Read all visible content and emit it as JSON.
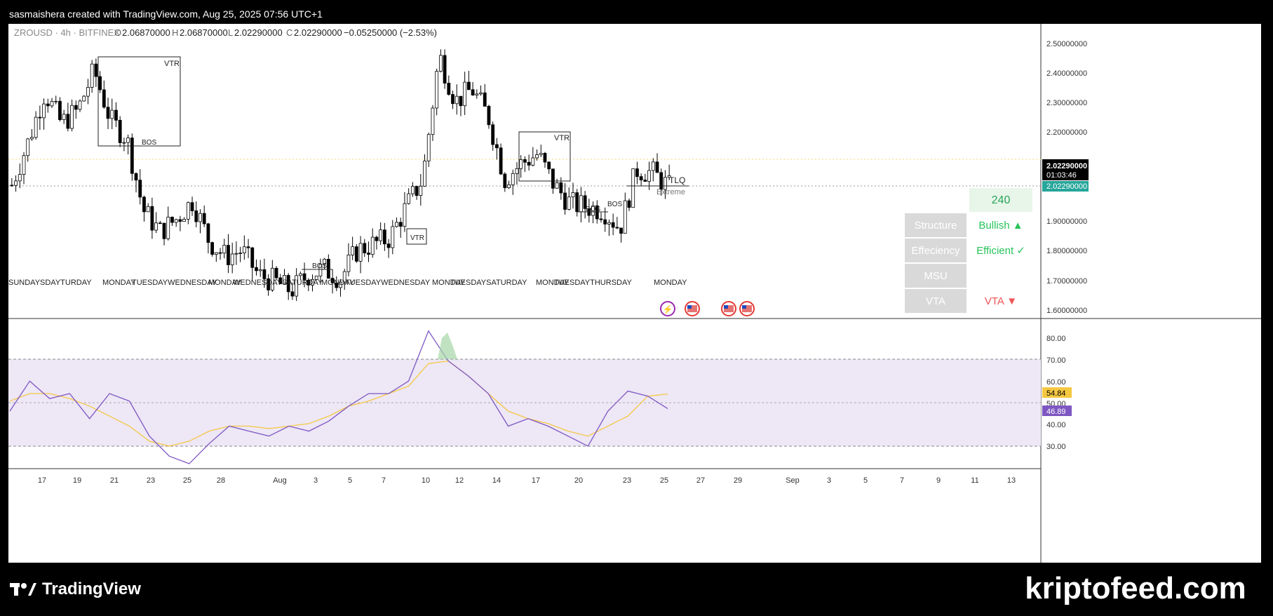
{
  "header": {
    "caption": "sasmaishera created with TradingView.com, Aug 25, 2025 07:56 UTC+1"
  },
  "symbol_bar": {
    "symbol": "ZROUSD · 4h · BITFINEX",
    "o_label": "O",
    "o": "2.06870000",
    "h_label": "H",
    "h": "2.06870000",
    "l_label": "L",
    "l": "2.02290000",
    "c_label": "C",
    "c": "2.02290000",
    "change": "−0.05250000 (−2.53%)"
  },
  "price_axis": {
    "labels": [
      "2.50000000",
      "2.40000000",
      "2.30000000",
      "2.20000000",
      "1.90000000",
      "1.80000000",
      "1.70000000",
      "1.60000000"
    ],
    "last_price": "2.02290000",
    "countdown": "01:03:46",
    "close_tag": "2.02290000"
  },
  "rsi_axis": {
    "labels": [
      "80.00",
      "70.00",
      "60.00",
      "40.00",
      "30.00"
    ],
    "partial_label": "50.00",
    "ma_value": "54.84",
    "rsi_value": "46.89"
  },
  "time_axis": {
    "labels": [
      "17",
      "19",
      "21",
      "23",
      "25",
      "28",
      "Aug",
      "3",
      "5",
      "7",
      "10",
      "12",
      "14",
      "17",
      "20",
      "23",
      "25",
      "27",
      "29",
      "Sep",
      "3",
      "5",
      "7",
      "9",
      "11",
      "13"
    ]
  },
  "annotations": {
    "vtr": "VTR",
    "bos": "BOS",
    "tlq": "TLQ",
    "extreme": "Extreme",
    "day_labels": [
      "SUNDAYSDAYTURDAY",
      "MONDAY",
      "TUESDAYWEDNESDAY",
      "MONDAY",
      "WEDNESDAYSATURDAY",
      "MONDAY",
      "TUESDAYWEDNESDAY",
      "MONDAY",
      "TUESDAYSATURDAY",
      "MONDAY",
      "TUESDAYTHURSDAY",
      "MONDAY",
      "TUESDAYWEDNESDAY",
      "MONDAY"
    ]
  },
  "status_table": {
    "timeframe": "240",
    "rows": [
      {
        "label": "Structure",
        "value": "Bullish ▲",
        "color": "#26c35a"
      },
      {
        "label": "Effeciency",
        "value": "Efficient ✓",
        "color": "#26c35a"
      },
      {
        "label": "MSU",
        "value": "",
        "color": "#26c35a"
      },
      {
        "label": "VTA",
        "value": "VTA ▼",
        "color": "#f05454"
      }
    ]
  },
  "footer": {
    "brand": "TradingView",
    "watermark": "kriptofeed.com"
  },
  "colors": {
    "up": "#ffffff",
    "down": "#000000",
    "rsi": "#7e57c2",
    "rsi_ma": "#f5c842",
    "rsi_band": "#ede7f6"
  },
  "chart_data": {
    "type": "candlestick",
    "timeframe": "4h",
    "symbol": "ZROUSD",
    "price_range": [
      1.6,
      2.55
    ],
    "price_path": [
      [
        "2025-07-16",
        2.03
      ],
      [
        "2025-07-17",
        2.17
      ],
      [
        "2025-07-18",
        2.33
      ],
      [
        "2025-07-19",
        2.23
      ],
      [
        "2025-07-20",
        2.27
      ],
      [
        "2025-07-21",
        2.4
      ],
      [
        "2025-07-22",
        2.24
      ],
      [
        "2025-07-23",
        2.18
      ],
      [
        "2025-07-24",
        1.95
      ],
      [
        "2025-07-25",
        1.88
      ],
      [
        "2025-07-26",
        1.92
      ],
      [
        "2025-07-27",
        1.98
      ],
      [
        "2025-07-28",
        1.85
      ],
      [
        "2025-07-29",
        1.8
      ],
      [
        "2025-07-30",
        1.82
      ],
      [
        "2025-07-31",
        1.74
      ],
      [
        "2025-08-01",
        1.72
      ],
      [
        "2025-08-02",
        1.69
      ],
      [
        "2025-08-03",
        1.74
      ],
      [
        "2025-08-04",
        1.76
      ],
      [
        "2025-08-05",
        1.73
      ],
      [
        "2025-08-06",
        1.82
      ],
      [
        "2025-08-07",
        1.84
      ],
      [
        "2025-08-08",
        1.86
      ],
      [
        "2025-08-09",
        1.96
      ],
      [
        "2025-08-10",
        2.05
      ],
      [
        "2025-08-11",
        2.45
      ],
      [
        "2025-08-12",
        2.3
      ],
      [
        "2025-08-13",
        2.34
      ],
      [
        "2025-08-14",
        2.25
      ],
      [
        "2025-08-15",
        2.05
      ],
      [
        "2025-08-16",
        2.1
      ],
      [
        "2025-08-17",
        2.13
      ],
      [
        "2025-08-18",
        2.03
      ],
      [
        "2025-08-19",
        1.97
      ],
      [
        "2025-08-20",
        1.96
      ],
      [
        "2025-08-21",
        1.95
      ],
      [
        "2025-08-22",
        1.89
      ],
      [
        "2025-08-23",
        2.08
      ],
      [
        "2025-08-24",
        2.07
      ],
      [
        "2025-08-25",
        2.0229
      ]
    ],
    "rsi": {
      "range": [
        25,
        85
      ],
      "bands": [
        70,
        50,
        30
      ],
      "values": [
        48,
        60,
        53,
        55,
        45,
        55,
        52,
        38,
        30,
        27,
        35,
        42,
        40,
        38,
        42,
        40,
        44,
        50,
        55,
        55,
        60,
        80,
        68,
        62,
        55,
        42,
        45,
        42,
        38,
        34,
        48,
        56,
        54,
        49
      ],
      "ma_values": [
        52,
        55,
        55,
        53,
        50,
        46,
        42,
        36,
        34,
        36,
        40,
        42,
        42,
        41,
        42,
        43,
        46,
        50,
        52,
        55,
        58,
        67,
        68,
        62,
        55,
        48,
        45,
        43,
        40,
        38,
        42,
        46,
        54,
        54.84
      ]
    }
  }
}
